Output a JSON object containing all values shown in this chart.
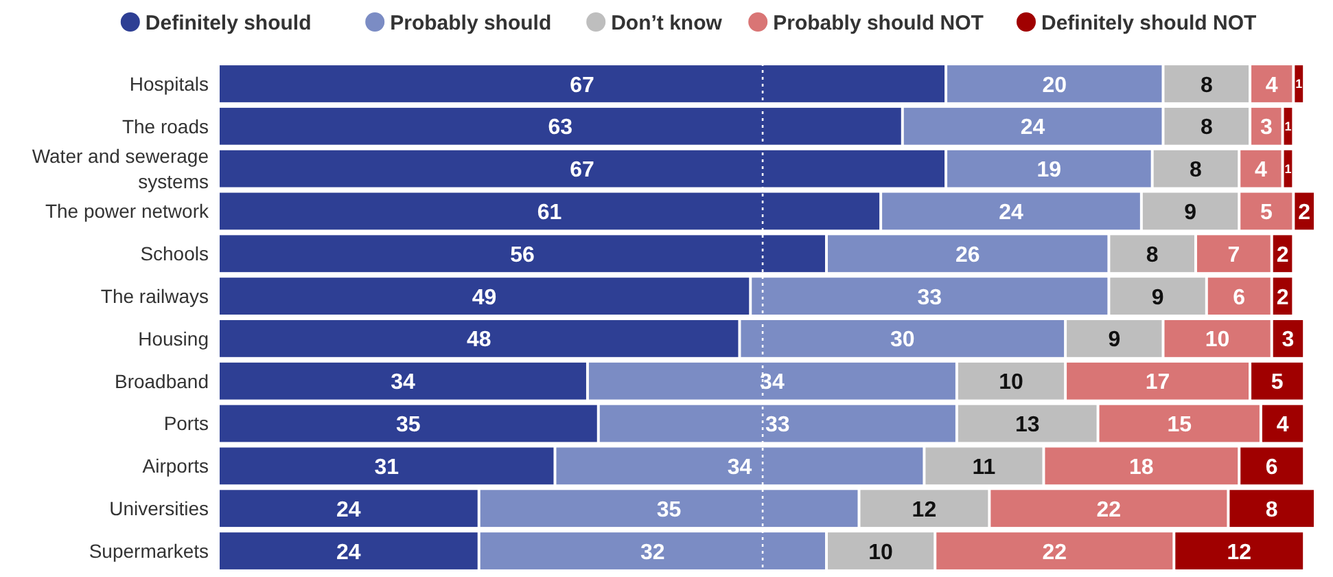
{
  "chart_data": {
    "type": "bar",
    "orientation": "horizontal",
    "stacked": true,
    "data_labels": true,
    "legend": "top",
    "tick_labels": "y",
    "categories": [
      "Hospitals",
      "The roads",
      "Water and sewerage systems",
      "The power network",
      "Schools",
      "The railways",
      "Housing",
      "Broadband",
      "Ports",
      "Airports",
      "Universities",
      "Supermarkets"
    ],
    "xlim": [
      0,
      101
    ],
    "ref_lines": [
      {
        "axis": "x",
        "value": 50,
        "line_style": "dotted",
        "color": "#ffffff"
      }
    ],
    "series": [
      {
        "name": "Definitely should",
        "color": "#2e3f94",
        "values": [
          67,
          63,
          67,
          61,
          56,
          49,
          48,
          34,
          35,
          31,
          24,
          24
        ]
      },
      {
        "name": "Probably should",
        "color": "#7b8cc4",
        "values": [
          20,
          24,
          19,
          24,
          26,
          33,
          30,
          34,
          33,
          34,
          35,
          32
        ]
      },
      {
        "name": "Don’t know",
        "color": "#bebebe",
        "values": [
          8,
          8,
          8,
          9,
          8,
          9,
          9,
          10,
          13,
          11,
          12,
          10
        ]
      },
      {
        "name": "Probably should NOT",
        "color": "#d97575",
        "values": [
          4,
          3,
          4,
          5,
          7,
          6,
          10,
          17,
          15,
          18,
          22,
          22
        ]
      },
      {
        "name": "Definitely should NOT",
        "color": "#a00000",
        "values": [
          1,
          1,
          1,
          2,
          2,
          2,
          3,
          5,
          4,
          6,
          8,
          12
        ]
      }
    ]
  }
}
